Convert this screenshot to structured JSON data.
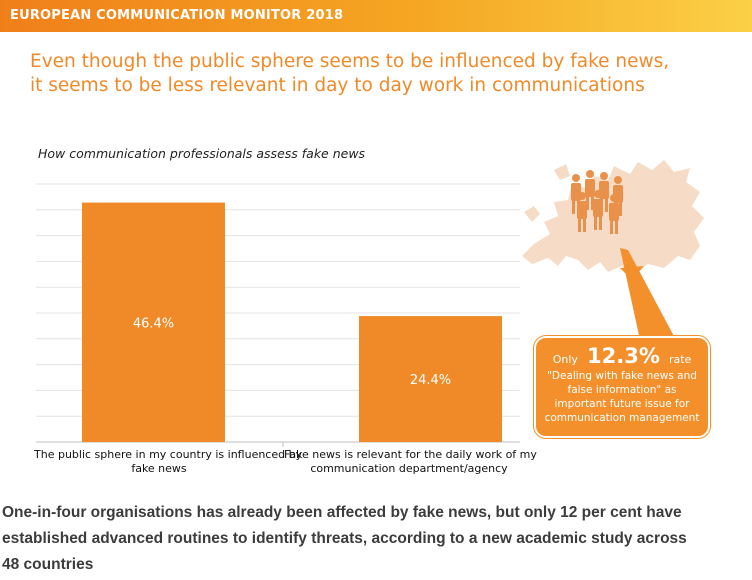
{
  "banner": {
    "title": "EUROPEAN COMMUNICATION MONITOR 2018"
  },
  "headline": {
    "line1": "Even though the public sphere seems to be influenced by fake news,",
    "line2": "it seems to be less relevant in day to day work in communications"
  },
  "chart_data": {
    "type": "bar",
    "title": "How communication professionals assess fake news",
    "categories": [
      {
        "line1": "The public sphere in my country is influenced by",
        "line2": "fake news"
      },
      {
        "line1": "Fake news is relevant for the daily work of my",
        "line2": "communication department/agency"
      }
    ],
    "values": [
      46.4,
      24.4
    ],
    "value_labels": [
      "46.4%",
      "24.4%"
    ],
    "ylim": [
      0,
      50
    ],
    "grid": true,
    "bar_color": "#f08a28"
  },
  "callout": {
    "prefix": "Only",
    "value": "12.3%",
    "suffix": "rate",
    "line1": "\"Dealing with fake news and",
    "line2": "false information\" as",
    "line3": "important future issue for",
    "line4": "communication management",
    "color": "#f3902b"
  },
  "map": {
    "icon": "europe-map-with-people-icon"
  },
  "summary": {
    "line1": "One-in-four organisations has already been affected by fake news, but only 12 per cent have",
    "line2": "established advanced routines to identify threats, according to a new academic study across",
    "line3": "48 countries"
  }
}
